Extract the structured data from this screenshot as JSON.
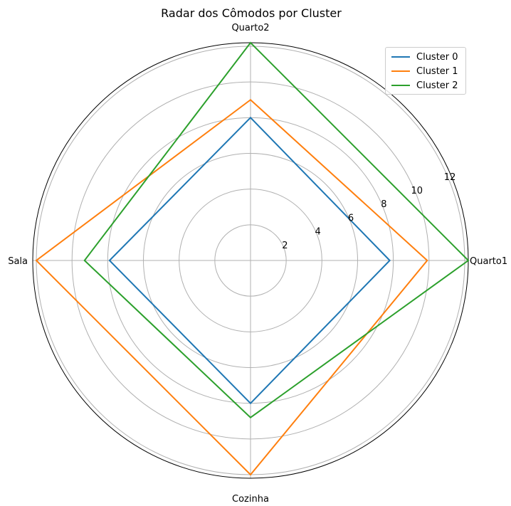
{
  "chart_data": {
    "type": "radar",
    "title": "Radar dos Cômodos por Cluster",
    "categories": [
      "Quarto1",
      "Quarto2",
      "Sala",
      "Cozinha"
    ],
    "rmax": 12.2,
    "rticks": [
      2,
      4,
      6,
      8,
      10,
      12
    ],
    "grid": true,
    "legend_position": "top-right",
    "series": [
      {
        "name": "Cluster 0",
        "color": "#1f77b4",
        "values": [
          7.8,
          8.0,
          7.9,
          8.0
        ]
      },
      {
        "name": "Cluster 1",
        "color": "#ff7f0e",
        "values": [
          9.9,
          9.0,
          12.0,
          12.0
        ]
      },
      {
        "name": "Cluster 2",
        "color": "#2ca02c",
        "values": [
          12.2,
          12.2,
          9.3,
          8.8
        ]
      }
    ]
  }
}
